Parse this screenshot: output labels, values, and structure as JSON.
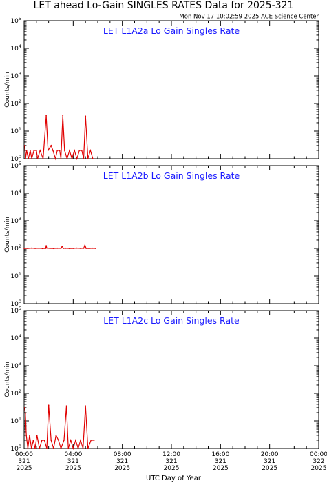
{
  "header": {
    "title": "LET ahead Lo-Gain SINGLES RATES Data for 2025-321",
    "timestamp": "Mon Nov 17 10:02:59 2025 ACE Science Center"
  },
  "axes": {
    "ylabel": "Counts/min",
    "xlabel": "UTC Day of Year",
    "y_tick_base": "10",
    "y_tick_exponents": [
      "0",
      "1",
      "2",
      "3",
      "4",
      "5"
    ],
    "x_ticks": [
      {
        "time": "00:00",
        "doy": "321",
        "year": "2025"
      },
      {
        "time": "04:00",
        "doy": "321",
        "year": "2025"
      },
      {
        "time": "08:00",
        "doy": "321",
        "year": "2025"
      },
      {
        "time": "12:00",
        "doy": "321",
        "year": "2025"
      },
      {
        "time": "16:00",
        "doy": "321",
        "year": "2025"
      },
      {
        "time": "20:00",
        "doy": "321",
        "year": "2025"
      },
      {
        "time": "00:00",
        "doy": "322",
        "year": "2025"
      }
    ]
  },
  "colors": {
    "data": "#e00000",
    "panel_title": "#1a1aff",
    "axis": "#000000"
  },
  "chart_data": [
    {
      "type": "line",
      "title": "LET L1A2a Lo Gain Singles Rate",
      "y_scale": "log",
      "ylim": [
        1,
        100000
      ],
      "xlim_hours": [
        0,
        24
      ],
      "series": [
        {
          "x_hours": [
            0.05,
            0.12,
            0.2,
            0.35,
            0.5,
            0.62,
            0.8,
            1.0,
            1.1,
            1.3,
            1.55,
            1.8,
            1.95,
            2.2,
            2.35,
            2.55,
            2.7,
            2.9,
            3.0,
            3.15,
            3.3,
            3.5,
            3.7,
            3.9,
            4.1,
            4.3,
            4.5,
            4.7,
            4.85,
            5.0,
            5.2,
            5.4,
            5.6
          ],
          "values": [
            3,
            1,
            2,
            1,
            2,
            1,
            2,
            2,
            1,
            2,
            1,
            36,
            2,
            3,
            2,
            1,
            2,
            2,
            1,
            37,
            2,
            1,
            2,
            1,
            2,
            1,
            2,
            2,
            1,
            35,
            1,
            2,
            1
          ]
        }
      ]
    },
    {
      "type": "line",
      "title": "LET L1A2b Lo Gain Singles Rate",
      "y_scale": "log",
      "ylim": [
        1,
        100000
      ],
      "xlim_hours": [
        0,
        24
      ],
      "series": [
        {
          "x_hours": [
            0,
            0.3,
            0.6,
            0.9,
            1.2,
            1.5,
            1.75,
            1.8,
            1.85,
            2.1,
            2.4,
            2.7,
            3.0,
            3.1,
            3.2,
            3.4,
            3.7,
            4.0,
            4.3,
            4.6,
            4.85,
            4.95,
            5.05,
            5.3,
            5.6,
            5.8
          ],
          "values": [
            100,
            99,
            102,
            100,
            101,
            99,
            100,
            125,
            102,
            100,
            99,
            101,
            100,
            118,
            100,
            101,
            99,
            100,
            102,
            100,
            101,
            130,
            100,
            99,
            101,
            100
          ]
        }
      ]
    },
    {
      "type": "line",
      "title": "LET L1A2c Lo Gain Singles Rate",
      "y_scale": "log",
      "ylim": [
        1,
        100000
      ],
      "xlim_hours": [
        0,
        24
      ],
      "series": [
        {
          "x_hours": [
            0.05,
            0.1,
            0.18,
            0.3,
            0.45,
            0.6,
            0.75,
            0.9,
            1.05,
            1.25,
            1.45,
            1.65,
            1.85,
            2.0,
            2.2,
            2.4,
            2.6,
            2.8,
            3.0,
            3.25,
            3.45,
            3.6,
            3.8,
            4.0,
            4.2,
            4.4,
            4.6,
            4.8,
            5.0,
            5.2,
            5.45,
            5.7
          ],
          "values": [
            30,
            18,
            3,
            1,
            3,
            1,
            2,
            1,
            3,
            1,
            2,
            2,
            1,
            37,
            2,
            1,
            3,
            2,
            1,
            2,
            35,
            1,
            2,
            1,
            2,
            1,
            2,
            1,
            35,
            1,
            2,
            2
          ]
        }
      ]
    }
  ]
}
